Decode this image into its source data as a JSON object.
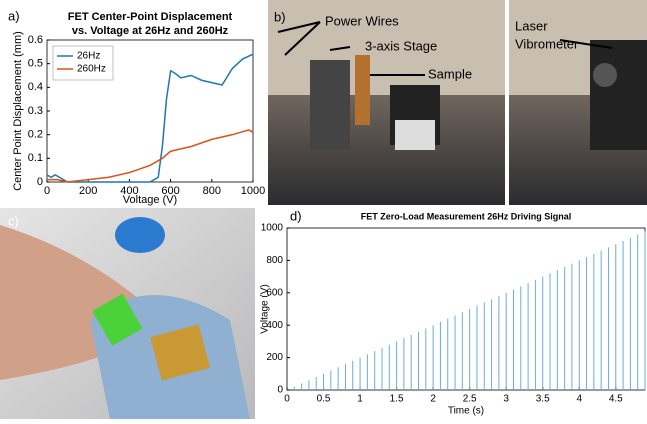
{
  "panels": {
    "a": "a)",
    "b": "b)",
    "c": "c)",
    "d": "d)"
  },
  "photo_b": {
    "power_wires": "Power Wires",
    "stage": "3-axis Stage",
    "sample": "Sample",
    "laser": "Laser",
    "vibrometer": "Vibrometer"
  },
  "chart_data": [
    {
      "type": "line",
      "title": "FET Center-Point Displacement",
      "subtitle": "vs. Voltage at 26Hz and 260Hz",
      "x_label": "Voltage (V)",
      "y_label": "Center Point Displacement (mm)",
      "xlim": [
        0,
        1000
      ],
      "ylim": [
        0,
        0.6
      ],
      "xticks": [
        0,
        200,
        400,
        600,
        800,
        1000
      ],
      "yticks": [
        0,
        0.1,
        0.2,
        0.3,
        0.4,
        0.5,
        0.6
      ],
      "legend": "top-left",
      "series": [
        {
          "name": "26Hz",
          "color": "#1f77b4",
          "x": [
            0,
            20,
            40,
            60,
            80,
            100,
            200,
            300,
            400,
            500,
            540,
            560,
            580,
            600,
            620,
            650,
            700,
            750,
            800,
            850,
            900,
            950,
            1000
          ],
          "values": [
            0.03,
            0.02,
            0.03,
            0.02,
            0.01,
            0,
            0,
            0,
            0,
            0,
            0.02,
            0.15,
            0.35,
            0.47,
            0.46,
            0.44,
            0.45,
            0.43,
            0.42,
            0.41,
            0.48,
            0.52,
            0.54
          ]
        },
        {
          "name": "260Hz",
          "color": "#d95319",
          "x": [
            0,
            50,
            100,
            200,
            300,
            400,
            500,
            560,
            600,
            700,
            800,
            900,
            980,
            1000
          ],
          "values": [
            0.01,
            0.01,
            0,
            0.01,
            0.02,
            0.04,
            0.07,
            0.1,
            0.13,
            0.15,
            0.18,
            0.2,
            0.22,
            0.21
          ]
        }
      ]
    },
    {
      "type": "stem",
      "title": "FET Zero-Load Measurement 26Hz Driving Signal",
      "x_label": "Time (s)",
      "y_label": "Voltage (V)",
      "xlim": [
        0,
        4.9
      ],
      "ylim": [
        0,
        1000
      ],
      "xticks": [
        0,
        0.5,
        1,
        1.5,
        2,
        2.5,
        3,
        3.5,
        4,
        4.5
      ],
      "yticks": [
        0,
        200,
        400,
        600,
        800,
        1000
      ],
      "series": [
        {
          "color": "#6aaed6",
          "x": [
            0.1,
            0.2,
            0.3,
            0.4,
            0.5,
            0.6,
            0.7,
            0.8,
            0.9,
            1,
            1.1,
            1.2,
            1.3,
            1.4,
            1.5,
            1.6,
            1.7,
            1.8,
            1.9,
            2,
            2.1,
            2.2,
            2.3,
            2.4,
            2.5,
            2.6,
            2.7,
            2.8,
            2.9,
            3,
            3.1,
            3.2,
            3.3,
            3.4,
            3.5,
            3.6,
            3.7,
            3.8,
            3.9,
            4,
            4.1,
            4.2,
            4.3,
            4.4,
            4.5,
            4.6,
            4.7,
            4.8,
            4.9
          ],
          "values": [
            20,
            40,
            60,
            80,
            100,
            120,
            140,
            160,
            180,
            200,
            220,
            240,
            260,
            280,
            300,
            320,
            340,
            360,
            380,
            400,
            420,
            440,
            460,
            480,
            500,
            520,
            540,
            560,
            580,
            600,
            620,
            640,
            660,
            680,
            700,
            720,
            740,
            760,
            780,
            800,
            820,
            840,
            860,
            880,
            900,
            920,
            940,
            960,
            980
          ]
        }
      ]
    }
  ]
}
